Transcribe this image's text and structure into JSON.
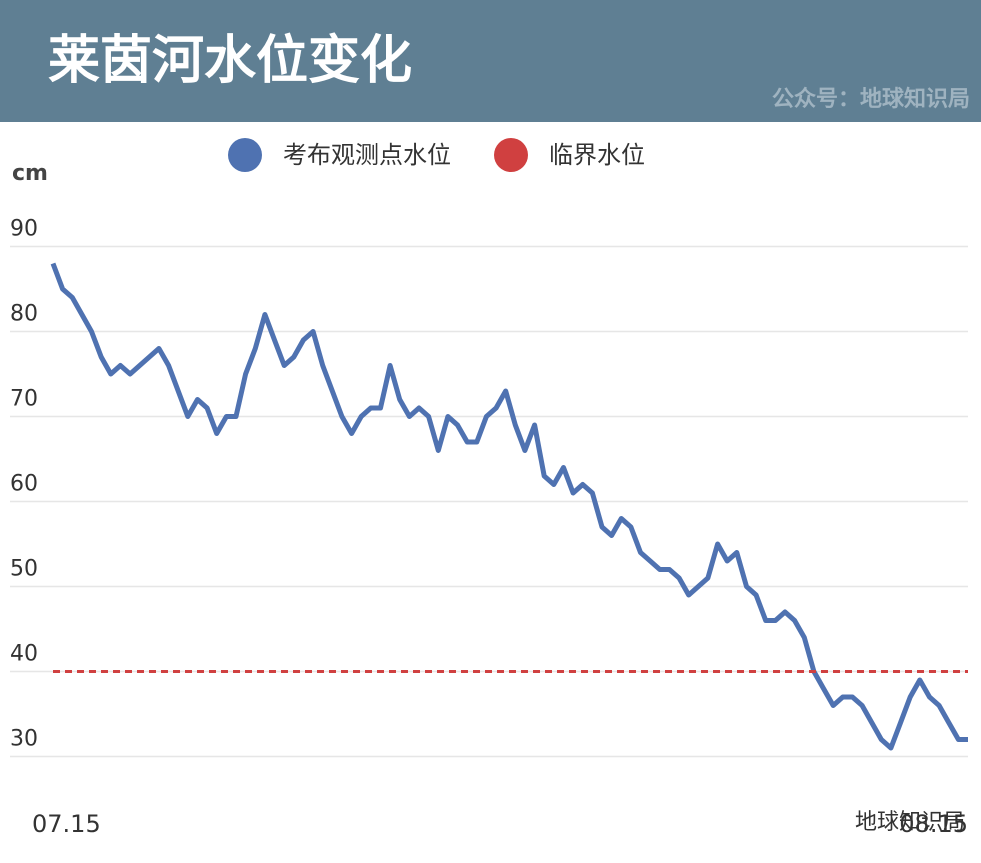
{
  "chart_data": {
    "type": "line",
    "title": "莱茵河水位变化",
    "source": "公众号：地球知识局",
    "watermark": "地球知识局",
    "y_unit": "cm",
    "categories": [
      "07.15",
      null,
      null,
      null,
      null,
      null,
      null,
      null,
      null,
      null,
      null,
      null,
      null,
      null,
      null,
      null,
      null,
      null,
      null,
      null,
      null,
      null,
      null,
      null,
      null,
      null,
      null,
      null,
      null,
      null,
      null,
      null,
      null,
      null,
      null,
      null,
      null,
      null,
      null,
      null,
      null,
      null,
      null,
      null,
      null,
      null,
      null,
      null,
      null,
      null,
      null,
      null,
      null,
      null,
      null,
      null,
      null,
      null,
      null,
      null,
      null,
      null,
      null,
      null,
      null,
      null,
      null,
      null,
      null,
      null,
      null,
      null,
      null,
      null,
      null,
      null,
      null,
      null,
      null,
      null,
      null,
      null,
      null,
      null,
      null,
      null,
      null,
      null,
      null,
      null,
      null,
      null,
      null,
      null,
      null,
      "08.15"
    ],
    "series": [
      {
        "name": "考布观测点水位",
        "color": "#4f72b1",
        "values": [
          88,
          85,
          84,
          82,
          80,
          77,
          75,
          76,
          75,
          76,
          77,
          78,
          76,
          73,
          70,
          72,
          71,
          68,
          70,
          70,
          75,
          78,
          82,
          79,
          76,
          77,
          79,
          80,
          76,
          73,
          70,
          68,
          70,
          71,
          71,
          76,
          72,
          70,
          71,
          70,
          66,
          70,
          69,
          67,
          67,
          70,
          71,
          73,
          69,
          66,
          69,
          63,
          62,
          64,
          61,
          62,
          61,
          57,
          56,
          58,
          57,
          54,
          53,
          52,
          52,
          51,
          49,
          50,
          51,
          55,
          53,
          54,
          50,
          49,
          46,
          46,
          47,
          46,
          44,
          40,
          38,
          36,
          37,
          37,
          36,
          34,
          32,
          31,
          34,
          37,
          39,
          37,
          36,
          34,
          32,
          32
        ]
      }
    ],
    "reference_lines": [
      {
        "name": "临界水位",
        "value": 40,
        "color": "#d04040"
      }
    ],
    "ylim": [
      27,
      95
    ],
    "yticks": [
      30,
      40,
      50,
      60,
      70,
      80,
      90
    ],
    "grid": true
  }
}
